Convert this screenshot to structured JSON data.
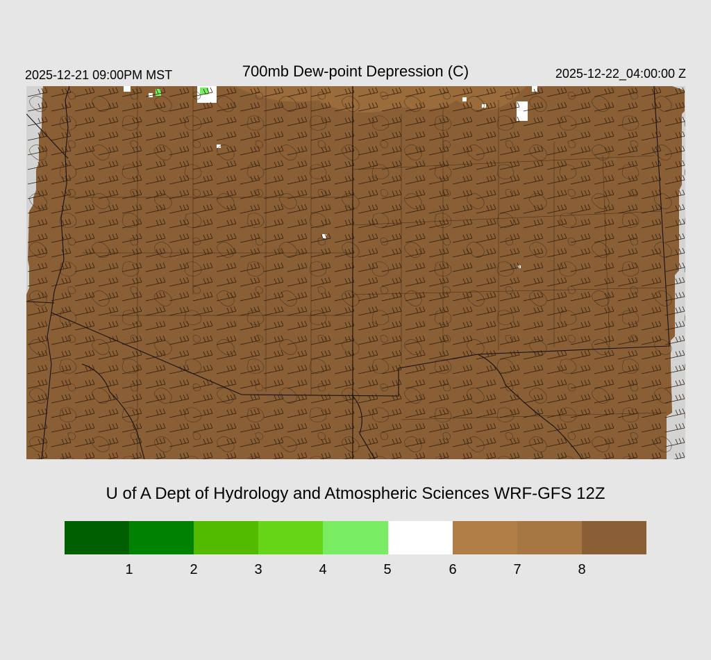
{
  "header": {
    "valid_local": "2025-12-21 09:00PM MST",
    "title": "700mb Dew-point Depression (C)",
    "valid_utc": "2025-12-22_04:00:00 Z"
  },
  "map": {
    "field_color": "#8a5f36",
    "missing_color": "#d3d3d3",
    "moist_patch_colors": [
      "#ffffff",
      "#78ec62",
      "#b27e48"
    ]
  },
  "credit": "U of A Dept of Hydrology and Atmospheric Sciences WRF-GFS 12Z",
  "legend": {
    "colors": [
      "#005f00",
      "#008200",
      "#52bb00",
      "#66d417",
      "#78ec62",
      "#ffffff",
      "#b27e48",
      "#a67743",
      "#8a5f36"
    ],
    "ticks": [
      "1",
      "2",
      "3",
      "4",
      "5",
      "6",
      "7",
      "8"
    ]
  }
}
